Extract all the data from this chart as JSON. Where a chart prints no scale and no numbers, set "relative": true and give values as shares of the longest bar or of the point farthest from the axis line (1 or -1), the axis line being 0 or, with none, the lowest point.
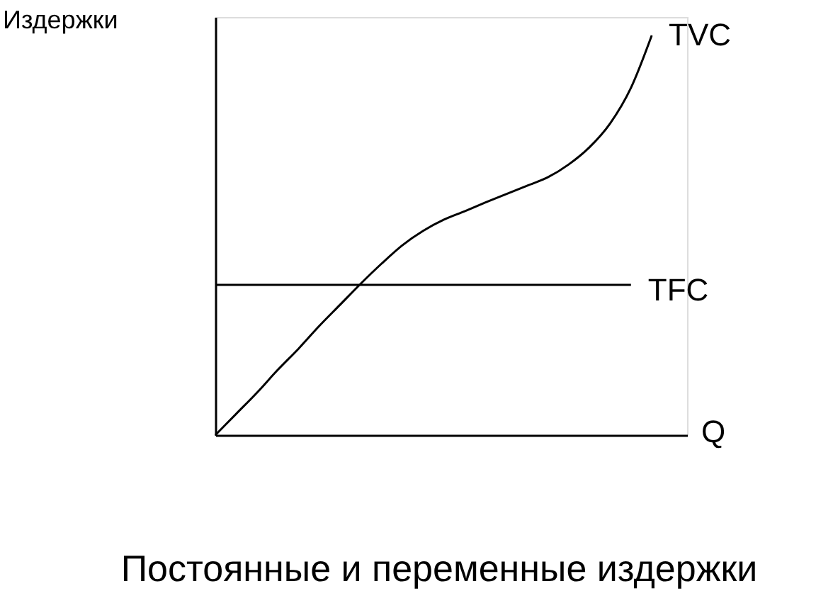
{
  "chart_data": {
    "type": "line",
    "title": "Постоянные и переменные издержки",
    "xlabel": "Q",
    "ylabel": "Издержки",
    "relative": true,
    "legend": false,
    "marker": "none",
    "line_style": "solid",
    "categories": [
      null,
      null,
      null,
      null,
      null,
      null,
      null,
      null,
      null,
      null,
      null,
      null,
      null,
      null,
      null,
      null,
      null,
      null,
      null,
      null,
      null,
      null
    ],
    "series": [
      {
        "name": "TVC",
        "color": "#000000",
        "values": [
          0,
          0.053,
          0.106,
          0.163,
          0.216,
          0.273,
          0.326,
          0.379,
          0.429,
          0.475,
          0.511,
          0.539,
          0.56,
          0.582,
          0.603,
          0.624,
          0.645,
          0.677,
          0.72,
          0.78,
          0.869,
          1
        ]
      },
      {
        "name": "TFC",
        "color": "#000000",
        "values": [
          0.376,
          0.376,
          0.376,
          0.376,
          0.376,
          0.376,
          0.376,
          0.376,
          0.376,
          0.376,
          0.376,
          0.376,
          0.376,
          0.376,
          0.376,
          0.376,
          0.376,
          0.376,
          0.376,
          0.376,
          0.376,
          null
        ]
      }
    ]
  }
}
